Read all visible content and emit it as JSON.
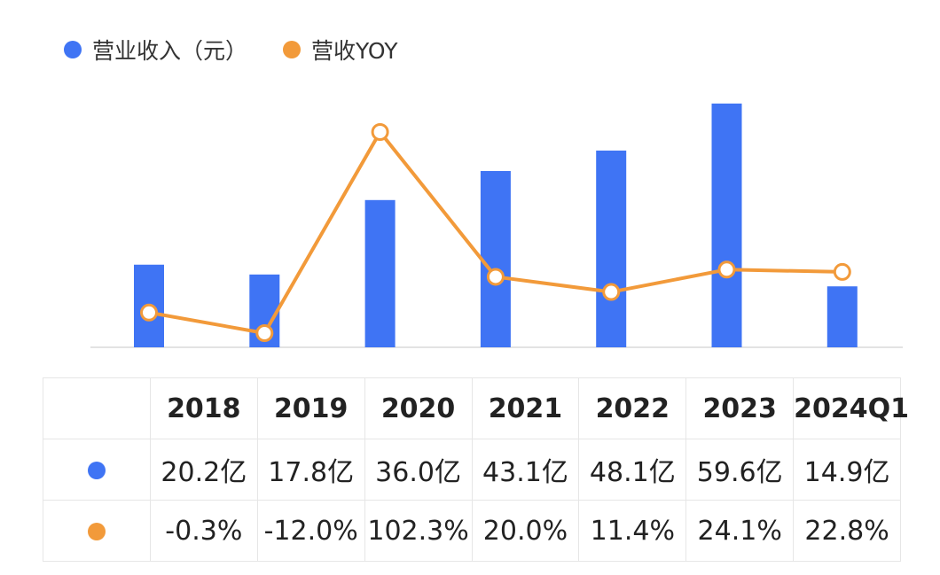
{
  "legend": {
    "revenue_label": "营业收入（元）",
    "yoy_label": "营收YOY"
  },
  "colors": {
    "revenue": "#3f74f4",
    "yoy": "#f29a3a"
  },
  "chart_data": {
    "type": "bar",
    "categories": [
      "2018",
      "2019",
      "2020",
      "2021",
      "2022",
      "2023",
      "2024Q1"
    ],
    "series": [
      {
        "name": "营业收入（元）",
        "type": "bar",
        "unit": "亿",
        "values": [
          20.2,
          17.8,
          36.0,
          43.1,
          48.1,
          59.6,
          14.9
        ]
      },
      {
        "name": "营收YOY",
        "type": "line",
        "unit": "%",
        "values": [
          -0.3,
          -12.0,
          102.3,
          20.0,
          11.4,
          24.1,
          22.8
        ]
      }
    ],
    "bar_ylim": [
      0,
      60
    ],
    "line_ylim": [
      -23,
      120
    ],
    "title": "",
    "xlabel": "",
    "ylabel": ""
  },
  "table": {
    "headers": [
      "2018",
      "2019",
      "2020",
      "2021",
      "2022",
      "2023",
      "2024Q1"
    ],
    "revenue_row": [
      "20.2亿",
      "17.8亿",
      "36.0亿",
      "43.1亿",
      "48.1亿",
      "59.6亿",
      "14.9亿"
    ],
    "yoy_row": [
      "-0.3%",
      "-12.0%",
      "102.3%",
      "20.0%",
      "11.4%",
      "24.1%",
      "22.8%"
    ]
  }
}
